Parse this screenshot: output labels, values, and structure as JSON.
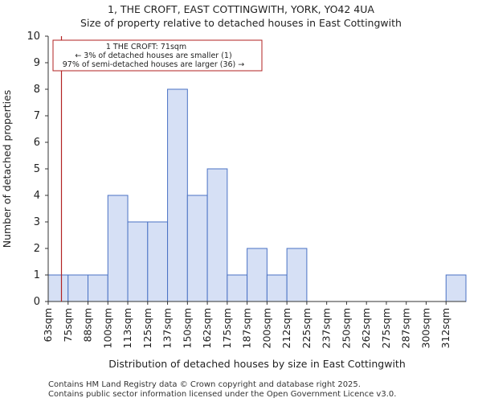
{
  "chart_data": {
    "type": "bar",
    "title": "1, THE CROFT, EAST COTTINGWITH, YORK, YO42 4UA",
    "subtitle": "Size of property relative to detached houses in East Cottingwith",
    "xlabel": "Distribution of detached houses by size in East Cottingwith",
    "ylabel": "Number of detached properties",
    "categories": [
      "63sqm",
      "75sqm",
      "88sqm",
      "100sqm",
      "113sqm",
      "125sqm",
      "137sqm",
      "150sqm",
      "162sqm",
      "175sqm",
      "187sqm",
      "200sqm",
      "212sqm",
      "225sqm",
      "237sqm",
      "250sqm",
      "262sqm",
      "275sqm",
      "287sqm",
      "300sqm",
      "312sqm"
    ],
    "values": [
      1,
      1,
      1,
      4,
      3,
      3,
      8,
      4,
      5,
      1,
      2,
      1,
      2,
      0,
      0,
      0,
      0,
      0,
      0,
      0,
      1
    ],
    "ylim": [
      0,
      10
    ],
    "yticks": [
      0,
      1,
      2,
      3,
      4,
      5,
      6,
      7,
      8,
      9,
      10
    ],
    "grid": false,
    "bar_color": "#d6e0f5",
    "bar_edge_color": "#4a72c4",
    "marker": {
      "value_sqm": 71,
      "color": "#b22222",
      "annotation": [
        "1 THE CROFT: 71sqm",
        "← 3% of detached houses are smaller (1)",
        "97% of semi-detached houses are larger (36) →"
      ]
    }
  },
  "footer": {
    "line1": "Contains HM Land Registry data © Crown copyright and database right 2025.",
    "line2": "Contains public sector information licensed under the Open Government Licence v3.0."
  }
}
